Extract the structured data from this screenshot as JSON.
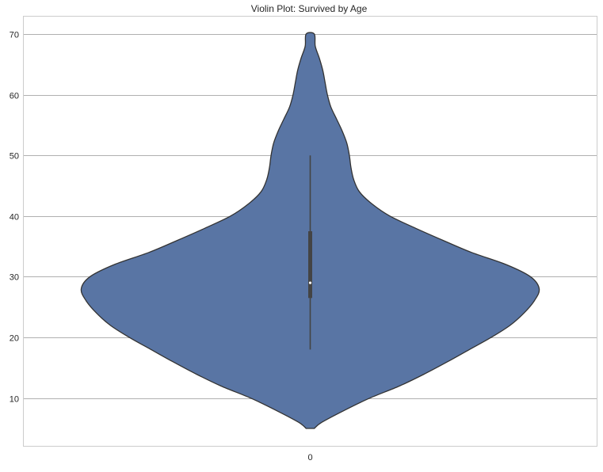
{
  "chart_data": {
    "type": "violin",
    "title": "Violin Plot: Survived by Age",
    "xlabel": "",
    "ylabel": "",
    "categories": [
      "0"
    ],
    "ylim": [
      2,
      73
    ],
    "yticks": [
      10,
      20,
      30,
      40,
      50,
      60,
      70
    ],
    "grid": "horizontal",
    "color": "#5975a4",
    "edge_color": "#333333",
    "density_profile": [
      {
        "y": 5,
        "w": 0.018
      },
      {
        "y": 6,
        "w": 0.05
      },
      {
        "y": 8,
        "w": 0.15
      },
      {
        "y": 10,
        "w": 0.26
      },
      {
        "y": 12,
        "w": 0.39
      },
      {
        "y": 14,
        "w": 0.5
      },
      {
        "y": 16,
        "w": 0.6
      },
      {
        "y": 18,
        "w": 0.695
      },
      {
        "y": 20,
        "w": 0.79
      },
      {
        "y": 22,
        "w": 0.873
      },
      {
        "y": 24,
        "w": 0.933
      },
      {
        "y": 26,
        "w": 0.978
      },
      {
        "y": 28,
        "w": 1.0
      },
      {
        "y": 30,
        "w": 0.962
      },
      {
        "y": 32,
        "w": 0.856
      },
      {
        "y": 34,
        "w": 0.705
      },
      {
        "y": 36,
        "w": 0.58
      },
      {
        "y": 38,
        "w": 0.46
      },
      {
        "y": 40,
        "w": 0.348
      },
      {
        "y": 42,
        "w": 0.27
      },
      {
        "y": 44,
        "w": 0.215
      },
      {
        "y": 46,
        "w": 0.19
      },
      {
        "y": 48,
        "w": 0.178
      },
      {
        "y": 50,
        "w": 0.171
      },
      {
        "y": 52,
        "w": 0.16
      },
      {
        "y": 54,
        "w": 0.14
      },
      {
        "y": 56,
        "w": 0.115
      },
      {
        "y": 58,
        "w": 0.09
      },
      {
        "y": 60,
        "w": 0.075
      },
      {
        "y": 62,
        "w": 0.065
      },
      {
        "y": 64,
        "w": 0.055
      },
      {
        "y": 66,
        "w": 0.04
      },
      {
        "y": 68,
        "w": 0.022
      },
      {
        "y": 70,
        "w": 0.018
      }
    ],
    "box": {
      "whisker_low": 18,
      "q1": 26.5,
      "median": 29,
      "q3": 37.5,
      "whisker_high": 50
    }
  }
}
